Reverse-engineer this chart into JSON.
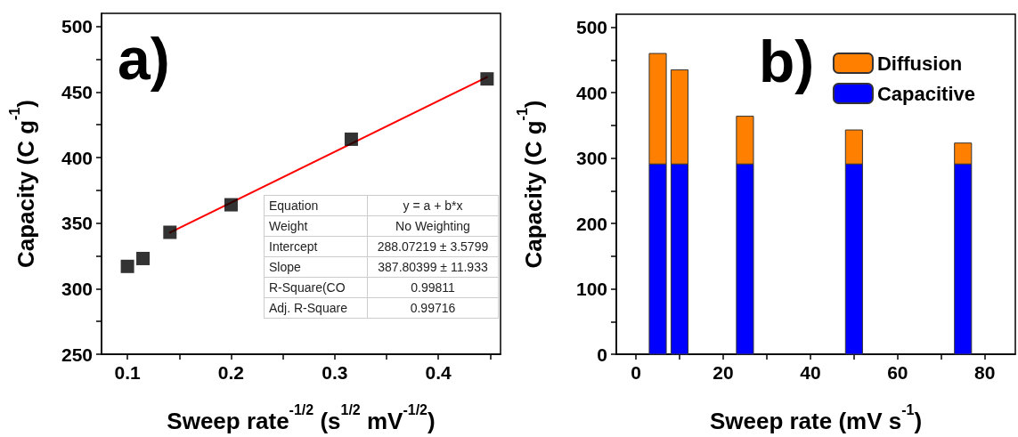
{
  "chart_data": [
    {
      "type": "scatter",
      "xlabel": "Sweep rate$^{-1/2}$ (s$^{1/2}$ mV$^{-1/2}$)",
      "ylabel": "Capacity (C g$^{-1}$)",
      "xlim": [
        0.075,
        0.46
      ],
      "ylim": [
        250,
        510
      ],
      "xticks": [
        0.1,
        {
          "value": 0.15,
          "label": null
        },
        0.2,
        {
          "value": 0.25,
          "label": null
        },
        0.3,
        {
          "value": 0.35,
          "label": null
        },
        0.4,
        {
          "value": 0.45,
          "label": null
        }
      ],
      "yticks": [
        250,
        {
          "value": 275,
          "label": null
        },
        300,
        {
          "value": 325,
          "label": null
        },
        350,
        {
          "value": 375,
          "label": null
        },
        400,
        {
          "value": 425,
          "label": null
        },
        450,
        {
          "value": 475,
          "label": null
        },
        500
      ],
      "series": [
        {
          "marker": "square",
          "color": "#000000",
          "x": [
            0.1,
            0.115,
            0.141,
            0.2,
            0.316,
            0.447
          ],
          "values": [
            317,
            323,
            343,
            364,
            414,
            460
          ]
        },
        {
          "type": "line",
          "color": "#ff0000",
          "x": [
            0.141,
            0.447
          ],
          "values": [
            342.8,
            461.4
          ]
        }
      ],
      "annotations": [
        "a)",
        "Equation",
        "y = a + b*x",
        "Weight",
        "No Weighting",
        "Intercept",
        "288.07219 ± 3.5799",
        "Slope",
        "387.80399 ± 11.933",
        "R-Square(CO",
        "0.99811",
        "Adj. R-Square",
        "0.99716"
      ]
    },
    {
      "type": "bar",
      "stacked": true,
      "xlabel": "Sweep rate (mV s$^{-1}$)",
      "ylabel": "Capacity (C g$^{-1}$)",
      "xlim": [
        -4.5,
        87
      ],
      "ylim": [
        0,
        520
      ],
      "xticks": [
        0,
        {
          "value": 10,
          "label": null
        },
        20,
        {
          "value": 30,
          "label": null
        },
        40,
        {
          "value": 50,
          "label": null
        },
        60,
        {
          "value": 70,
          "label": null
        },
        80
      ],
      "yticks": [
        0,
        {
          "value": 50,
          "label": null
        },
        100,
        {
          "value": 150,
          "label": null
        },
        200,
        {
          "value": 250,
          "label": null
        },
        300,
        {
          "value": 350,
          "label": null
        },
        400,
        {
          "value": 450,
          "label": null
        },
        500
      ],
      "x": [
        5,
        10,
        25,
        50,
        75
      ],
      "series": [
        {
          "name": "Capacitive",
          "color": "#0000ff",
          "values": [
            291,
            291,
            291,
            291,
            291
          ]
        },
        {
          "name": "Diffusion",
          "color": "#ff8000",
          "values": [
            169,
            144,
            73,
            52,
            32
          ]
        }
      ],
      "legend": "top right",
      "annotations": [
        "b)"
      ]
    }
  ]
}
